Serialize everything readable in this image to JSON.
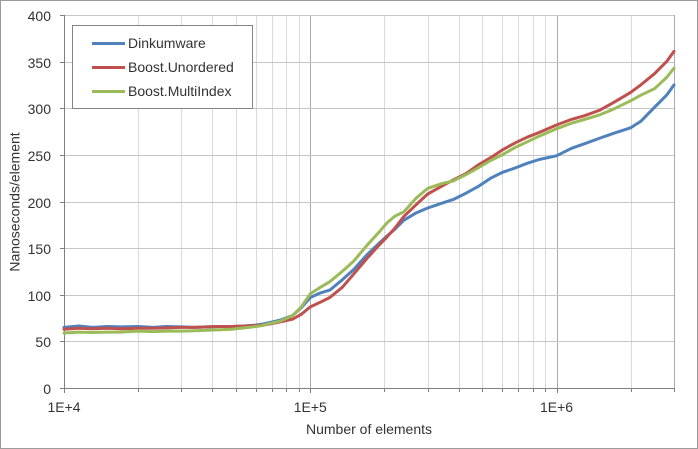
{
  "chart_data": {
    "type": "line",
    "title": "",
    "xlabel": "Number of elements",
    "ylabel": "Nanoseconds/element",
    "x_scale": "log",
    "xlim": [
      10000,
      3000000
    ],
    "ylim": [
      0,
      400
    ],
    "y_tick_interval": 50,
    "y_tick_labels": [
      "0",
      "50",
      "100",
      "150",
      "200",
      "250",
      "300",
      "350",
      "400"
    ],
    "x_major_ticks": [
      {
        "value": 10000,
        "label": "1E+4"
      },
      {
        "value": 100000,
        "label": "1E+5"
      },
      {
        "value": 1000000,
        "label": "1E+6"
      }
    ],
    "grid": "on",
    "legend_position": "top-left",
    "x": [
      10000,
      11500,
      13000,
      15000,
      17000,
      20000,
      23000,
      26000,
      30000,
      34000,
      38000,
      43000,
      48000,
      54000,
      60000,
      64000,
      68000,
      76000,
      85000,
      92000,
      100000,
      110000,
      120000,
      135000,
      150000,
      170000,
      190000,
      205000,
      220000,
      240000,
      270000,
      300000,
      340000,
      380000,
      430000,
      480000,
      540000,
      600000,
      680000,
      760000,
      850000,
      1000000,
      1150000,
      1300000,
      1500000,
      1700000,
      2000000,
      2200000,
      2500000,
      2800000,
      3000000
    ],
    "series": [
      {
        "name": "Dinkumware",
        "color": "#4F81BD",
        "values": [
          65,
          66.5,
          65,
          66,
          65.5,
          66,
          65,
          66,
          65.5,
          65,
          65.5,
          66,
          66,
          66.5,
          67.5,
          68.5,
          70,
          73,
          78,
          86,
          97,
          102,
          105,
          116,
          127,
          143,
          155,
          163,
          170,
          180,
          188,
          193,
          198,
          202,
          209,
          216,
          225,
          231,
          236,
          241,
          245,
          249,
          257,
          262,
          268,
          273,
          279,
          286,
          301,
          314,
          325
        ]
      },
      {
        "name": "Boost.Unordered",
        "color": "#C0504D",
        "values": [
          63,
          64,
          63.5,
          64,
          63.5,
          64,
          64,
          64.5,
          65,
          65,
          65.5,
          66,
          66,
          66.5,
          67,
          67.5,
          68.5,
          71,
          74,
          79,
          87,
          92,
          97,
          108,
          122,
          139,
          153,
          162,
          171,
          184,
          197,
          208,
          216,
          223,
          230,
          239,
          247,
          255,
          263,
          269,
          274,
          282,
          288,
          292,
          298,
          306,
          317,
          325,
          337,
          350,
          361
        ]
      },
      {
        "name": "Boost.MultiIndex",
        "color": "#9BBB59",
        "values": [
          59,
          60,
          59.5,
          60,
          60,
          61,
          60.5,
          61,
          61,
          61.5,
          62,
          62.5,
          63,
          64.5,
          66,
          67,
          69,
          72,
          78,
          87,
          101,
          108,
          114,
          125,
          136,
          153,
          167,
          177,
          184,
          189,
          204,
          214,
          219,
          222,
          229,
          236,
          244,
          250,
          258,
          264,
          270,
          278,
          284,
          288,
          293,
          299,
          308,
          314,
          321,
          333,
          343
        ]
      }
    ]
  },
  "styles": {
    "grid_h": "#c6c6c6",
    "grid_minor": "#d9d9d9",
    "grid_major": "#ababab",
    "axis": "#7f7f7f",
    "text": "#333333",
    "background": "#ffffff",
    "border": "#9b9b9b"
  }
}
